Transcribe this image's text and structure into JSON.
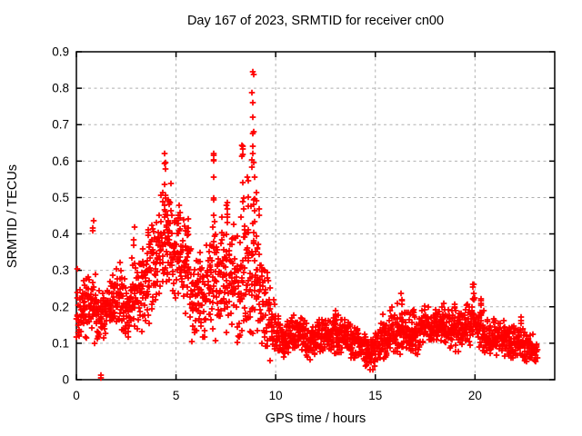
{
  "window": {
    "title": "Day 167 of 2023, SRMTID for receiver cn00"
  },
  "chart_data": {
    "type": "scatter",
    "title": "Day 167 of 2023, SRMTID for receiver cn00",
    "xlabel": "GPS time / hours",
    "ylabel": "SRMTID / TECUs",
    "xlim": [
      0,
      24
    ],
    "ylim": [
      0,
      0.9
    ],
    "xticks": [
      [
        0,
        "0"
      ],
      [
        5,
        "5"
      ],
      [
        10,
        "10"
      ],
      [
        15,
        "15"
      ],
      [
        20,
        "20"
      ]
    ],
    "yticks": [
      [
        0,
        "0"
      ],
      [
        0.1,
        "0.1"
      ],
      [
        0.2,
        "0.2"
      ],
      [
        0.3,
        "0.3"
      ],
      [
        0.4,
        "0.4"
      ],
      [
        0.5,
        "0.5"
      ],
      [
        0.6,
        "0.6"
      ],
      [
        0.7,
        "0.7"
      ],
      [
        0.8,
        "0.8"
      ],
      [
        0.9,
        "0.9"
      ]
    ],
    "grid": true,
    "grid_color": "#b0b0b0",
    "border_color": "#000000",
    "marker": {
      "symbol": "+",
      "size": 7,
      "color": "#ff0000"
    },
    "legend": null,
    "seed": 167,
    "points_per_band": 24,
    "bands": [
      [
        0.0,
        0.25,
        0.08,
        0.31
      ],
      [
        0.25,
        0.5,
        0.1,
        0.28
      ],
      [
        0.5,
        0.75,
        0.12,
        0.3
      ],
      [
        0.75,
        1.0,
        0.1,
        0.33
      ],
      [
        1.0,
        1.25,
        0.08,
        0.26
      ],
      [
        1.25,
        1.5,
        0.1,
        0.27
      ],
      [
        1.5,
        1.75,
        0.13,
        0.3
      ],
      [
        1.75,
        2.0,
        0.12,
        0.3
      ],
      [
        2.0,
        2.25,
        0.13,
        0.33
      ],
      [
        2.25,
        2.5,
        0.1,
        0.3
      ],
      [
        2.5,
        2.75,
        0.1,
        0.26
      ],
      [
        2.75,
        3.0,
        0.12,
        0.35
      ],
      [
        3.0,
        3.25,
        0.13,
        0.35
      ],
      [
        3.25,
        3.5,
        0.12,
        0.38
      ],
      [
        3.5,
        3.75,
        0.15,
        0.42
      ],
      [
        3.75,
        4.0,
        0.17,
        0.45
      ],
      [
        4.0,
        4.25,
        0.2,
        0.5
      ],
      [
        4.25,
        4.5,
        0.22,
        0.55
      ],
      [
        4.5,
        4.75,
        0.2,
        0.55
      ],
      [
        4.75,
        5.0,
        0.18,
        0.47
      ],
      [
        5.0,
        5.25,
        0.2,
        0.48
      ],
      [
        5.25,
        5.5,
        0.18,
        0.45
      ],
      [
        5.5,
        5.75,
        0.15,
        0.44
      ],
      [
        5.75,
        6.0,
        0.08,
        0.35
      ],
      [
        6.0,
        6.25,
        0.1,
        0.38
      ],
      [
        6.25,
        6.5,
        0.06,
        0.4
      ],
      [
        6.5,
        6.75,
        0.12,
        0.42
      ],
      [
        6.75,
        7.0,
        0.1,
        0.45
      ],
      [
        7.0,
        7.25,
        0.12,
        0.4
      ],
      [
        7.25,
        7.5,
        0.14,
        0.45
      ],
      [
        7.5,
        7.75,
        0.12,
        0.48
      ],
      [
        7.75,
        8.0,
        0.12,
        0.45
      ],
      [
        8.0,
        8.25,
        0.05,
        0.45
      ],
      [
        8.25,
        8.5,
        0.12,
        0.52
      ],
      [
        8.5,
        8.75,
        0.06,
        0.5
      ],
      [
        8.75,
        9.0,
        0.08,
        0.55
      ],
      [
        9.0,
        9.25,
        0.1,
        0.48
      ],
      [
        9.25,
        9.5,
        0.08,
        0.35
      ],
      [
        9.5,
        9.75,
        0.04,
        0.3
      ],
      [
        9.75,
        10.0,
        0.05,
        0.25
      ],
      [
        10.0,
        10.25,
        0.06,
        0.18
      ],
      [
        10.25,
        10.5,
        0.06,
        0.17
      ],
      [
        10.5,
        10.75,
        0.06,
        0.17
      ],
      [
        10.75,
        11.0,
        0.07,
        0.18
      ],
      [
        11.0,
        11.25,
        0.07,
        0.19
      ],
      [
        11.25,
        11.5,
        0.06,
        0.18
      ],
      [
        11.5,
        11.75,
        0.05,
        0.16
      ],
      [
        11.75,
        12.0,
        0.06,
        0.16
      ],
      [
        12.0,
        12.25,
        0.06,
        0.18
      ],
      [
        12.25,
        12.5,
        0.07,
        0.17
      ],
      [
        12.5,
        12.75,
        0.07,
        0.19
      ],
      [
        12.75,
        13.0,
        0.06,
        0.2
      ],
      [
        13.0,
        13.25,
        0.06,
        0.19
      ],
      [
        13.25,
        13.5,
        0.06,
        0.18
      ],
      [
        13.5,
        13.75,
        0.06,
        0.17
      ],
      [
        13.75,
        14.0,
        0.05,
        0.16
      ],
      [
        14.0,
        14.25,
        0.05,
        0.16
      ],
      [
        14.25,
        14.5,
        0.04,
        0.15
      ],
      [
        14.5,
        14.75,
        0.02,
        0.13
      ],
      [
        14.75,
        15.0,
        0.02,
        0.14
      ],
      [
        15.0,
        15.25,
        0.04,
        0.16
      ],
      [
        15.25,
        15.5,
        0.05,
        0.18
      ],
      [
        15.5,
        15.75,
        0.06,
        0.2
      ],
      [
        15.75,
        16.0,
        0.06,
        0.21
      ],
      [
        16.0,
        16.25,
        0.06,
        0.22
      ],
      [
        16.25,
        16.5,
        0.07,
        0.21
      ],
      [
        16.5,
        16.75,
        0.07,
        0.19
      ],
      [
        16.75,
        17.0,
        0.07,
        0.2
      ],
      [
        17.0,
        17.25,
        0.06,
        0.19
      ],
      [
        17.25,
        17.5,
        0.08,
        0.21
      ],
      [
        17.5,
        17.75,
        0.09,
        0.21
      ],
      [
        17.75,
        18.0,
        0.08,
        0.2
      ],
      [
        18.0,
        18.25,
        0.08,
        0.22
      ],
      [
        18.25,
        18.5,
        0.08,
        0.21
      ],
      [
        18.5,
        18.75,
        0.07,
        0.2
      ],
      [
        18.75,
        19.0,
        0.08,
        0.21
      ],
      [
        19.0,
        19.25,
        0.07,
        0.19
      ],
      [
        19.25,
        19.5,
        0.08,
        0.2
      ],
      [
        19.5,
        19.75,
        0.08,
        0.22
      ],
      [
        19.75,
        20.0,
        0.09,
        0.24
      ],
      [
        20.0,
        20.25,
        0.08,
        0.22
      ],
      [
        20.25,
        20.5,
        0.07,
        0.2
      ],
      [
        20.5,
        20.75,
        0.06,
        0.18
      ],
      [
        20.75,
        21.0,
        0.06,
        0.17
      ],
      [
        21.0,
        21.25,
        0.05,
        0.18
      ],
      [
        21.25,
        21.5,
        0.06,
        0.17
      ],
      [
        21.5,
        21.75,
        0.06,
        0.16
      ],
      [
        21.75,
        22.0,
        0.05,
        0.16
      ],
      [
        22.0,
        22.25,
        0.05,
        0.16
      ],
      [
        22.25,
        22.5,
        0.04,
        0.15
      ],
      [
        22.5,
        22.75,
        0.04,
        0.14
      ],
      [
        22.75,
        23.0,
        0.03,
        0.13
      ],
      [
        23.0,
        23.15,
        0.04,
        0.11,
        10
      ]
    ],
    "spikes": [
      [
        0.85,
        0.38,
        0.44,
        3
      ],
      [
        2.9,
        0.35,
        0.43,
        3
      ],
      [
        3.6,
        0.36,
        0.42,
        3
      ],
      [
        4.45,
        0.44,
        0.63,
        9
      ],
      [
        4.6,
        0.38,
        0.56,
        6
      ],
      [
        5.15,
        0.42,
        0.48,
        4
      ],
      [
        5.6,
        0.35,
        0.54,
        6
      ],
      [
        6.9,
        0.42,
        0.62,
        8
      ],
      [
        7.55,
        0.38,
        0.52,
        6
      ],
      [
        8.35,
        0.45,
        0.66,
        8
      ],
      [
        8.6,
        0.4,
        0.58,
        5
      ],
      [
        8.85,
        0.58,
        0.85,
        13
      ],
      [
        8.9,
        0.3,
        0.57,
        8
      ],
      [
        9.05,
        0.25,
        0.52,
        6
      ],
      [
        13.0,
        0.16,
        0.21,
        4
      ],
      [
        16.3,
        0.18,
        0.24,
        5
      ],
      [
        16.9,
        0.17,
        0.22,
        4
      ],
      [
        18.4,
        0.17,
        0.23,
        3
      ],
      [
        19.0,
        0.17,
        0.21,
        3
      ],
      [
        19.9,
        0.18,
        0.27,
        6
      ],
      [
        20.3,
        0.16,
        0.24,
        5
      ],
      [
        22.3,
        0.13,
        0.18,
        3
      ]
    ],
    "outliers": [
      [
        1.21,
        0.004
      ],
      [
        1.25,
        0.012
      ]
    ]
  }
}
